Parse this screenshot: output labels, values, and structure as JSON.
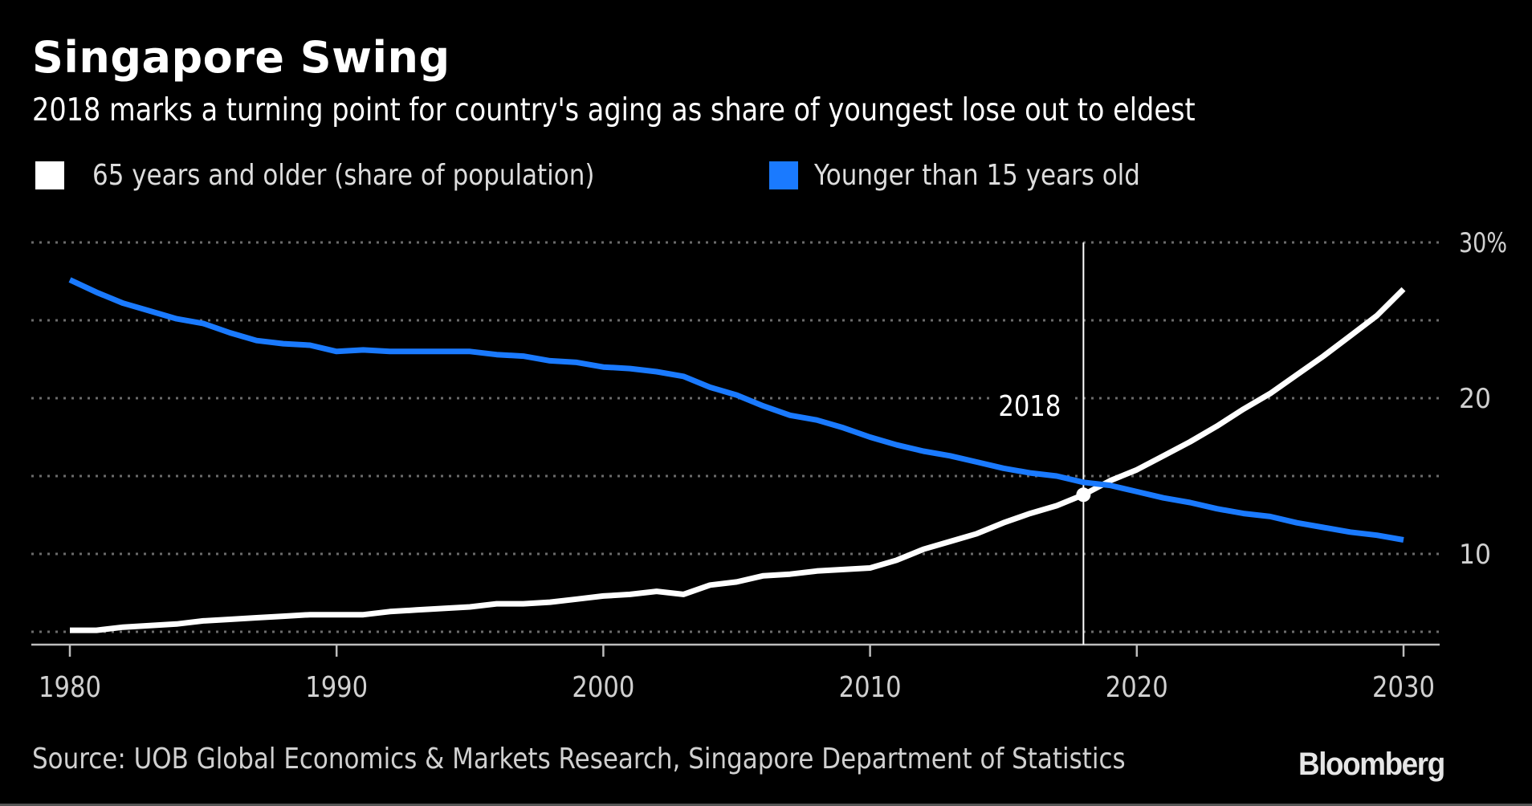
{
  "header": {
    "title": "Singapore Swing",
    "subtitle": "2018 marks a turning point for country's aging as share of youngest lose out to eldest"
  },
  "legend": [
    {
      "label": "65 years and older (share of population)",
      "color": "#ffffff"
    },
    {
      "label": "Younger than 15 years old",
      "color": "#1a7aff"
    }
  ],
  "footer": {
    "source": "Source: UOB Global Economics & Markets Research, Singapore Department of Statistics",
    "brand": "Bloomberg"
  },
  "chart_data": {
    "type": "line",
    "title": "Singapore Swing",
    "subtitle": "2018 marks a turning point for country's aging as share of youngest lose out to eldest",
    "xlabel": "",
    "ylabel": "",
    "x": [
      1980,
      1981,
      1982,
      1983,
      1984,
      1985,
      1986,
      1987,
      1988,
      1989,
      1990,
      1991,
      1992,
      1993,
      1994,
      1995,
      1996,
      1997,
      1998,
      1999,
      2000,
      2001,
      2002,
      2003,
      2004,
      2005,
      2006,
      2007,
      2008,
      2009,
      2010,
      2011,
      2012,
      2013,
      2014,
      2015,
      2016,
      2017,
      2018,
      2019,
      2020,
      2021,
      2022,
      2023,
      2024,
      2025,
      2026,
      2027,
      2028,
      2029,
      2030
    ],
    "series": [
      {
        "name": "65 years and older (share of population)",
        "color": "#ffffff",
        "values": [
          5.1,
          5.1,
          5.3,
          5.4,
          5.5,
          5.7,
          5.8,
          5.9,
          6.0,
          6.1,
          6.1,
          6.1,
          6.3,
          6.4,
          6.5,
          6.6,
          6.8,
          6.8,
          6.9,
          7.1,
          7.3,
          7.4,
          7.6,
          7.4,
          8.0,
          8.2,
          8.6,
          8.7,
          8.9,
          9.0,
          9.1,
          9.6,
          10.3,
          10.8,
          11.3,
          12.0,
          12.6,
          13.1,
          13.8,
          14.7,
          15.4,
          16.3,
          17.2,
          18.2,
          19.3,
          20.3,
          21.5,
          22.7,
          24.0,
          25.3,
          27.0
        ]
      },
      {
        "name": "Younger than 15 years old",
        "color": "#1a7aff",
        "values": [
          27.6,
          26.8,
          26.1,
          25.6,
          25.1,
          24.8,
          24.2,
          23.7,
          23.5,
          23.4,
          23.0,
          23.1,
          23.0,
          23.0,
          23.0,
          23.0,
          22.8,
          22.7,
          22.4,
          22.3,
          22.0,
          21.9,
          21.7,
          21.4,
          20.7,
          20.2,
          19.5,
          18.9,
          18.6,
          18.1,
          17.5,
          17.0,
          16.6,
          16.3,
          15.9,
          15.5,
          15.2,
          15.0,
          14.6,
          14.4,
          14.0,
          13.6,
          13.3,
          12.9,
          12.6,
          12.4,
          12.0,
          11.7,
          11.4,
          11.2,
          10.9
        ]
      }
    ],
    "xlim": [
      1980,
      2030
    ],
    "ylim": [
      5,
      30
    ],
    "x_ticks": [
      1980,
      1990,
      2000,
      2010,
      2020,
      2030
    ],
    "x_tick_labels": [
      "1980",
      "1990",
      "2000",
      "2010",
      "2020",
      "2030"
    ],
    "y_gridlines": [
      5,
      10,
      15,
      20,
      25,
      30
    ],
    "y_tick_labels": [
      {
        "value": 30,
        "label": "30%"
      },
      {
        "value": 20,
        "label": "20"
      },
      {
        "value": 10,
        "label": "10"
      }
    ],
    "y_axis_side": "right",
    "grid": true,
    "grid_style": "dotted",
    "legend_position": "top-left",
    "annotations": [
      {
        "type": "vline",
        "x": 2018,
        "label": "2018",
        "marker_series": "65 years and older (share of population)",
        "marker_value": 13.8
      }
    ]
  }
}
